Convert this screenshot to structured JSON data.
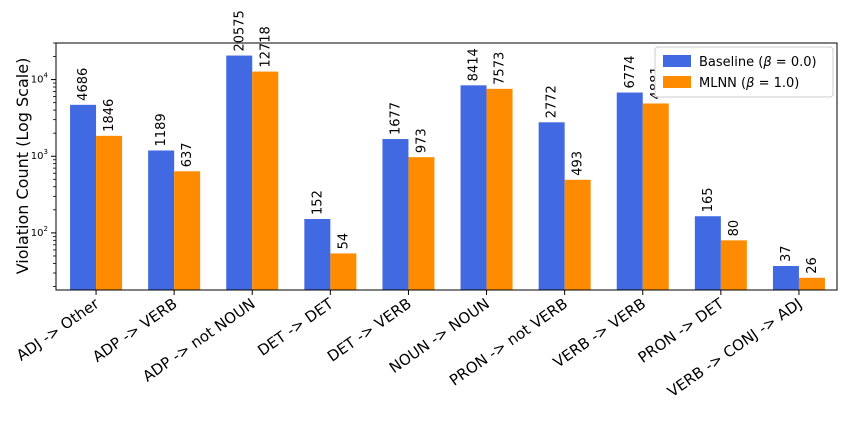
{
  "chart_data": {
    "type": "bar",
    "title": "",
    "xlabel": "",
    "ylabel": "Violation Count (Log Scale)",
    "yscale": "log",
    "ylim": [
      18,
      30000
    ],
    "grid": false,
    "legend_position": "top-right",
    "categories": [
      "ADJ -> Other",
      "ADP -> VERB",
      "ADP -> not NOUN",
      "DET -> DET",
      "DET -> VERB",
      "NOUN -> NOUN",
      "PRON -> not VERB",
      "VERB -> VERB",
      "PRON -> DET",
      "VERB -> CONJ -> ADJ"
    ],
    "series": [
      {
        "name": "Baseline",
        "legend_greek": "β",
        "legend_value": "0.0",
        "color": "#4169E1",
        "values": [
          4686,
          1189,
          20575,
          152,
          1677,
          8414,
          2772,
          6774,
          165,
          37
        ]
      },
      {
        "name": "MLNN",
        "legend_greek": "β",
        "legend_value": "1.0",
        "color": "#FF8C00",
        "values": [
          1846,
          637,
          12718,
          54,
          973,
          7573,
          493,
          4881,
          80,
          26
        ]
      }
    ],
    "y_ticks": [
      {
        "value": 100,
        "base": "10",
        "exp": "2"
      },
      {
        "value": 1000,
        "base": "10",
        "exp": "3"
      },
      {
        "value": 10000,
        "base": "10",
        "exp": "4"
      }
    ]
  }
}
